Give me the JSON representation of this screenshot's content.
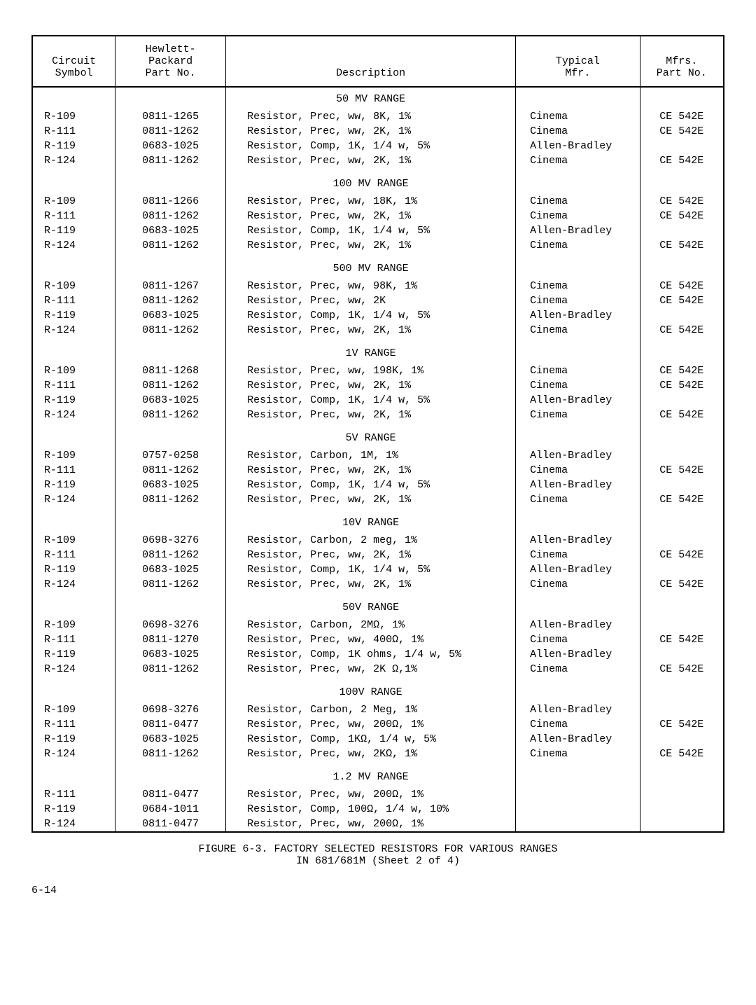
{
  "headers": {
    "circuit": [
      "Circuit",
      "Symbol"
    ],
    "part": [
      "Hewlett-",
      "Packard",
      "Part No."
    ],
    "desc": [
      "Description"
    ],
    "mfr": [
      "Typical",
      "Mfr."
    ],
    "mfrpart": [
      "Mfrs.",
      "Part No."
    ]
  },
  "sections": [
    {
      "heading": "50 MV RANGE",
      "rows": [
        {
          "circuit": "R-109",
          "part": "0811-1265",
          "desc": "Resistor, Prec, ww, 8K, 1%",
          "mfr": "Cinema",
          "mfrpart": "CE 542E"
        },
        {
          "circuit": "R-111",
          "part": "0811-1262",
          "desc": "Resistor, Prec, ww, 2K, 1%",
          "mfr": "Cinema",
          "mfrpart": "CE 542E"
        },
        {
          "circuit": "R-119",
          "part": "0683-1025",
          "desc": "Resistor, Comp, 1K, 1/4 w, 5%",
          "mfr": "Allen-Bradley",
          "mfrpart": ""
        },
        {
          "circuit": "R-124",
          "part": "0811-1262",
          "desc": "Resistor, Prec, ww, 2K, 1%",
          "mfr": "Cinema",
          "mfrpart": "CE 542E"
        }
      ]
    },
    {
      "heading": "100 MV RANGE",
      "rows": [
        {
          "circuit": "R-109",
          "part": "0811-1266",
          "desc": "Resistor, Prec, ww, 18K, 1%",
          "mfr": "Cinema",
          "mfrpart": "CE 542E"
        },
        {
          "circuit": "R-111",
          "part": "0811-1262",
          "desc": "Resistor, Prec, ww, 2K, 1%",
          "mfr": "Cinema",
          "mfrpart": "CE 542E"
        },
        {
          "circuit": "R-119",
          "part": "0683-1025",
          "desc": "Resistor, Comp, 1K, 1/4 w, 5%",
          "mfr": "Allen-Bradley",
          "mfrpart": ""
        },
        {
          "circuit": "R-124",
          "part": "0811-1262",
          "desc": "Resistor, Prec, ww, 2K, 1%",
          "mfr": "Cinema",
          "mfrpart": "CE 542E"
        }
      ]
    },
    {
      "heading": "500 MV RANGE",
      "rows": [
        {
          "circuit": "R-109",
          "part": "0811-1267",
          "desc": "Resistor, Prec, ww, 98K, 1%",
          "mfr": "Cinema",
          "mfrpart": "CE 542E"
        },
        {
          "circuit": "R-111",
          "part": "0811-1262",
          "desc": "Resistor, Prec, ww, 2K",
          "mfr": "Cinema",
          "mfrpart": "CE 542E"
        },
        {
          "circuit": "R-119",
          "part": "0683-1025",
          "desc": "Resistor, Comp, 1K, 1/4 w, 5%",
          "mfr": "Allen-Bradley",
          "mfrpart": ""
        },
        {
          "circuit": "R-124",
          "part": "0811-1262",
          "desc": "Resistor, Prec, ww, 2K, 1%",
          "mfr": "Cinema",
          "mfrpart": "CE 542E"
        }
      ]
    },
    {
      "heading": "1V RANGE",
      "rows": [
        {
          "circuit": "R-109",
          "part": "0811-1268",
          "desc": "Resistor, Prec, ww, 198K, 1%",
          "mfr": "Cinema",
          "mfrpart": "CE 542E"
        },
        {
          "circuit": "R-111",
          "part": "0811-1262",
          "desc": "Resistor, Prec, ww, 2K, 1%",
          "mfr": "Cinema",
          "mfrpart": "CE 542E"
        },
        {
          "circuit": "R-119",
          "part": "0683-1025",
          "desc": "Resistor, Comp, 1K, 1/4 w, 5%",
          "mfr": "Allen-Bradley",
          "mfrpart": ""
        },
        {
          "circuit": "R-124",
          "part": "0811-1262",
          "desc": "Resistor, Prec, ww, 2K, 1%",
          "mfr": "Cinema",
          "mfrpart": "CE 542E"
        }
      ]
    },
    {
      "heading": "5V RANGE",
      "rows": [
        {
          "circuit": "R-109",
          "part": "0757-0258",
          "desc": "Resistor, Carbon, 1M, 1%",
          "mfr": "Allen-Bradley",
          "mfrpart": ""
        },
        {
          "circuit": "R-111",
          "part": "0811-1262",
          "desc": "Resistor, Prec, ww, 2K, 1%",
          "mfr": "Cinema",
          "mfrpart": "CE 542E"
        },
        {
          "circuit": "R-119",
          "part": "0683-1025",
          "desc": "Resistor, Comp, 1K, 1/4 w, 5%",
          "mfr": "Allen-Bradley",
          "mfrpart": ""
        },
        {
          "circuit": "R-124",
          "part": "0811-1262",
          "desc": "Resistor, Prec, ww, 2K, 1%",
          "mfr": "Cinema",
          "mfrpart": "CE 542E"
        }
      ]
    },
    {
      "heading": "10V RANGE",
      "rows": [
        {
          "circuit": "R-109",
          "part": "0698-3276",
          "desc": "Resistor, Carbon, 2 meg, 1%",
          "mfr": "Allen-Bradley",
          "mfrpart": ""
        },
        {
          "circuit": "R-111",
          "part": "0811-1262",
          "desc": "Resistor, Prec, ww, 2K, 1%",
          "mfr": "Cinema",
          "mfrpart": "CE 542E"
        },
        {
          "circuit": "R-119",
          "part": "0683-1025",
          "desc": "Resistor, Comp, 1K, 1/4 w, 5%",
          "mfr": "Allen-Bradley",
          "mfrpart": ""
        },
        {
          "circuit": "R-124",
          "part": "0811-1262",
          "desc": "Resistor, Prec, ww, 2K, 1%",
          "mfr": "Cinema",
          "mfrpart": "CE 542E"
        }
      ]
    },
    {
      "heading": "50V RANGE",
      "rows": [
        {
          "circuit": "R-109",
          "part": "0698-3276",
          "desc": "Resistor, Carbon, 2MΩ, 1%",
          "mfr": "Allen-Bradley",
          "mfrpart": ""
        },
        {
          "circuit": "R-111",
          "part": "0811-1270",
          "desc": "Resistor, Prec, ww, 400Ω, 1%",
          "mfr": "Cinema",
          "mfrpart": "CE 542E"
        },
        {
          "circuit": "R-119",
          "part": "0683-1025",
          "desc": "Resistor, Comp, 1K ohms, 1/4 w, 5%",
          "mfr": "Allen-Bradley",
          "mfrpart": ""
        },
        {
          "circuit": "R-124",
          "part": "0811-1262",
          "desc": "Resistor, Prec, ww, 2K Ω,1%",
          "mfr": "Cinema",
          "mfrpart": "CE 542E"
        }
      ]
    },
    {
      "heading": "100V RANGE",
      "rows": [
        {
          "circuit": "R-109",
          "part": "0698-3276",
          "desc": "Resistor, Carbon, 2 Meg, 1%",
          "mfr": "Allen-Bradley",
          "mfrpart": ""
        },
        {
          "circuit": "R-111",
          "part": "0811-0477",
          "desc": "Resistor, Prec, ww, 200Ω, 1%",
          "mfr": "Cinema",
          "mfrpart": "CE 542E"
        },
        {
          "circuit": "R-119",
          "part": "0683-1025",
          "desc": "Resistor, Comp, 1KΩ, 1/4 w, 5%",
          "mfr": "Allen-Bradley",
          "mfrpart": ""
        },
        {
          "circuit": "R-124",
          "part": "0811-1262",
          "desc": "Resistor, Prec, ww, 2KΩ, 1%",
          "mfr": "Cinema",
          "mfrpart": "CE 542E"
        }
      ]
    },
    {
      "heading": "1.2 MV RANGE",
      "rows": [
        {
          "circuit": "R-111",
          "part": "0811-0477",
          "desc": "Resistor, Prec, ww, 200Ω, 1%",
          "mfr": "",
          "mfrpart": ""
        },
        {
          "circuit": "R-119",
          "part": "0684-1011",
          "desc": "Resistor, Comp, 100Ω, 1/4 w, 10%",
          "mfr": "",
          "mfrpart": ""
        },
        {
          "circuit": "R-124",
          "part": "0811-0477",
          "desc": "Resistor, Prec, ww, 200Ω, 1%",
          "mfr": "",
          "mfrpart": ""
        }
      ]
    }
  ],
  "caption_line1": "FIGURE 6-3.  FACTORY SELECTED RESISTORS FOR VARIOUS RANGES",
  "caption_line2": "IN 681/681M (Sheet 2 of 4)",
  "page_number": "6-14"
}
